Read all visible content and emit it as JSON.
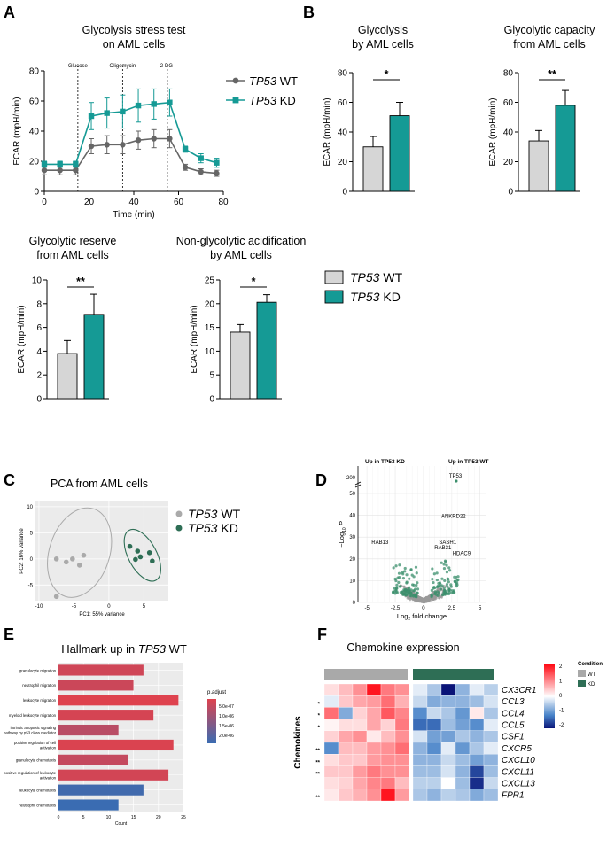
{
  "panel_letters": [
    "A",
    "B",
    "C",
    "D",
    "E",
    "F"
  ],
  "chart_data": [
    {
      "id": "A",
      "type": "line",
      "title": "Glycolysis stress test\non AML cells",
      "xlabel": "Time (min)",
      "ylabel": "ECAR (mpH/min)",
      "xlim": [
        0,
        80
      ],
      "ylim": [
        0,
        80
      ],
      "xticks": [
        0,
        20,
        40,
        60,
        80
      ],
      "yticks": [
        0,
        20,
        40,
        60,
        80
      ],
      "injections": [
        {
          "label": "Glucose",
          "x": 15
        },
        {
          "label": "Oligomycin",
          "x": 35
        },
        {
          "label": "2-DG",
          "x": 55
        }
      ],
      "x": [
        0,
        7,
        14,
        21,
        28,
        35,
        42,
        49,
        56,
        63,
        70,
        77
      ],
      "series": [
        {
          "name": "TP53 WT",
          "italic": "TP53",
          "suffix": "WT",
          "color": "#666666",
          "marker": "circle",
          "values": [
            14,
            14,
            14,
            30,
            31,
            31,
            34,
            35,
            35,
            16,
            13,
            12
          ],
          "errors": [
            3,
            3,
            3,
            5,
            6,
            6,
            6,
            6,
            6,
            2,
            2,
            2
          ]
        },
        {
          "name": "TP53 KD",
          "italic": "TP53",
          "suffix": "KD",
          "color": "#159a95",
          "marker": "square",
          "values": [
            18,
            18,
            18,
            50,
            52,
            53,
            57,
            58,
            59,
            28,
            22,
            19
          ],
          "errors": [
            2,
            2,
            2,
            9,
            10,
            11,
            11,
            10,
            9,
            2,
            3,
            3
          ]
        }
      ]
    },
    {
      "id": "B1",
      "type": "bar",
      "title": "Glycolysis\nby AML cells",
      "ylabel": "ECAR (mpH/min)",
      "ylim": [
        0,
        80
      ],
      "yticks": [
        0,
        20,
        40,
        60,
        80
      ],
      "values": [
        30,
        51
      ],
      "errors": [
        7,
        9
      ],
      "significance": "*"
    },
    {
      "id": "B2",
      "type": "bar",
      "title": "Glycolytic capacity\nfrom AML cells",
      "ylabel": "ECAR (mpH/min)",
      "ylim": [
        0,
        80
      ],
      "yticks": [
        0,
        20,
        40,
        60,
        80
      ],
      "values": [
        34,
        58
      ],
      "errors": [
        7,
        10
      ],
      "significance": "**"
    },
    {
      "id": "A2",
      "type": "bar",
      "title": "Glycolytic reserve\nfrom AML cells",
      "ylabel": "ECAR (mpH/min)",
      "ylim": [
        0,
        10
      ],
      "yticks": [
        0,
        2,
        4,
        6,
        8,
        10
      ],
      "values": [
        3.8,
        7.1
      ],
      "errors": [
        1.1,
        1.7
      ],
      "significance": "**"
    },
    {
      "id": "A3",
      "type": "bar",
      "title": "Non-glycolytic acidification\nby AML cells",
      "ylabel": "ECAR (mpH/min)",
      "ylim": [
        0,
        25
      ],
      "yticks": [
        0,
        5,
        10,
        15,
        20,
        25
      ],
      "values": [
        14,
        20.3
      ],
      "errors": [
        1.6,
        1.6
      ],
      "significance": "*"
    },
    {
      "id": "C",
      "type": "scatter",
      "title": "PCA from AML cells",
      "xlabel": "PC1: 55% variance",
      "ylabel": "PC2: 16% variance",
      "xlim": [
        -10.5,
        8.5
      ],
      "ylim": [
        -8,
        11
      ],
      "xticks": [
        -10,
        -5,
        0,
        5
      ],
      "yticks": [
        -5,
        0,
        5,
        10
      ],
      "series": [
        {
          "name": "TP53 WT",
          "italic": "TP53",
          "suffix": "WT",
          "color": "#aaaaaa",
          "points": [
            [
              -7.5,
              0
            ],
            [
              -6.1,
              -0.6
            ],
            [
              -5.2,
              0
            ],
            [
              -4.2,
              -1.2
            ],
            [
              -3.6,
              0.7
            ],
            [
              -7.5,
              -7.2
            ]
          ]
        },
        {
          "name": "TP53 KD",
          "italic": "TP53",
          "suffix": "KD",
          "color": "#2e6e55",
          "points": [
            [
              3,
              2.4
            ],
            [
              4.1,
              1.5
            ],
            [
              3.8,
              -0.1
            ],
            [
              4.5,
              0.4
            ],
            [
              5.8,
              1.2
            ],
            [
              6.2,
              -0.4
            ]
          ]
        }
      ]
    },
    {
      "id": "D",
      "type": "scatter",
      "title": "",
      "xlabel": "Log2 fold change",
      "ylabel": "−Log10 P",
      "xlim": [
        -5.8,
        5.5
      ],
      "ylim": [
        0,
        52
      ],
      "xticks": [
        -5,
        -2.5,
        0,
        2.5,
        5
      ],
      "yticks": [
        0,
        10,
        20,
        30,
        40,
        50
      ],
      "ybreak_tick": 200,
      "header_left": "Up in TP53 KD",
      "header_right": "Up in TP53 WT",
      "labels": [
        {
          "text": "TP53",
          "x": 2.9,
          "y": 200
        },
        {
          "text": "ANKRD22",
          "x": 2.2,
          "y": 38
        },
        {
          "text": "RAB13",
          "x": -4.6,
          "y": 26
        },
        {
          "text": "SASH1",
          "x": 2.0,
          "y": 26
        },
        {
          "text": "RAB31",
          "x": 1.6,
          "y": 23.5
        },
        {
          "text": "HDAC9",
          "x": 3.2,
          "y": 21
        }
      ]
    },
    {
      "id": "E",
      "type": "bar",
      "title": "Hallmark up in TP53 WT",
      "xlabel": "Count",
      "legend_title": "p.adjust",
      "xticks": [
        0,
        5,
        10,
        15,
        20,
        25
      ],
      "xlim": [
        0,
        25
      ],
      "legend_ticks": [
        "5.0e-07",
        "1.0e-06",
        "1.5e-06",
        "2.0e-06"
      ],
      "categories": [
        "granulocyte migration",
        "neutrophil migration",
        "leukocyte migration",
        "myeloid leukocyte migration",
        "intrinsic apoptotic signaling pathway by p53 class mediator",
        "positive regulation of cell activation",
        "granulocyte chemotaxis",
        "positive regulation of leukocyte activation",
        "leukocyte chemotaxis",
        "neutrophil chemotaxis"
      ],
      "values": [
        17,
        15,
        24,
        19,
        12,
        23,
        14,
        22,
        17,
        12
      ],
      "p_adjust": [
        3e-07,
        3.5e-07,
        1e-07,
        2.2e-07,
        6e-07,
        1.5e-07,
        4.5e-07,
        2.6e-07,
        2.2e-06,
        2.3e-06
      ]
    },
    {
      "id": "F",
      "type": "heatmap",
      "title": "Chemokine expression",
      "ylabel": "Chemokines",
      "legend_title": "Condition",
      "legend_entries": [
        "WT",
        "KD"
      ],
      "color_ticks": [
        "2",
        "1",
        "0",
        "-1",
        "-2"
      ],
      "genes": [
        "CX3CR1",
        "CCL3",
        "CCL4",
        "CCL5",
        "CSF1",
        "CXCR5",
        "CXCL10",
        "CXCL11",
        "CXCL13",
        "FPR1"
      ],
      "significance": [
        "",
        "*",
        "*",
        "*",
        "",
        "**",
        "**",
        "**",
        "",
        "**"
      ],
      "groups": [
        "WT",
        "WT",
        "WT",
        "WT",
        "WT",
        "WT",
        "KD",
        "KD",
        "KD",
        "KD",
        "KD",
        "KD"
      ],
      "values": [
        [
          0.3,
          0.6,
          1.0,
          2.1,
          1.2,
          1.0,
          -0.2,
          -0.6,
          -2.2,
          -0.8,
          -0.2,
          -0.5
        ],
        [
          -0.2,
          0.5,
          0.8,
          0.9,
          1.3,
          0.7,
          -0.4,
          -0.9,
          -0.8,
          -0.8,
          -0.7,
          -0.3
        ],
        [
          1.3,
          -0.9,
          0.4,
          0.8,
          1.5,
          1.1,
          -1.2,
          -0.4,
          -0.6,
          -1.1,
          0.2,
          -0.6
        ],
        [
          0.1,
          0.3,
          0.3,
          0.8,
          0.4,
          1.2,
          -1.5,
          -1.5,
          -0.7,
          -1.0,
          -1.2,
          -0.2
        ],
        [
          0.4,
          0.8,
          1.0,
          0.2,
          0.6,
          1.0,
          -0.3,
          -1.0,
          -1.0,
          -0.6,
          -0.8,
          -0.6
        ],
        [
          -1.2,
          0.6,
          0.6,
          0.9,
          1.0,
          1.3,
          -0.8,
          -1.2,
          -0.2,
          -1.1,
          -0.6,
          -0.2
        ],
        [
          0.3,
          0.5,
          0.5,
          0.9,
          1.0,
          1.0,
          -0.8,
          -0.8,
          -0.4,
          -0.7,
          -1.0,
          -0.8
        ],
        [
          0.5,
          0.5,
          0.9,
          1.2,
          1.0,
          1.0,
          -0.7,
          -0.7,
          -0.3,
          -0.8,
          -1.8,
          -0.7
        ],
        [
          0.3,
          0.4,
          0.8,
          1.1,
          1.2,
          0.6,
          -0.5,
          -0.5,
          0.0,
          -0.7,
          -2.0,
          -0.4
        ],
        [
          0.2,
          0.5,
          0.7,
          1.0,
          2.1,
          0.9,
          -0.6,
          -0.8,
          -0.5,
          -0.6,
          -0.9,
          -0.7
        ]
      ]
    }
  ]
}
